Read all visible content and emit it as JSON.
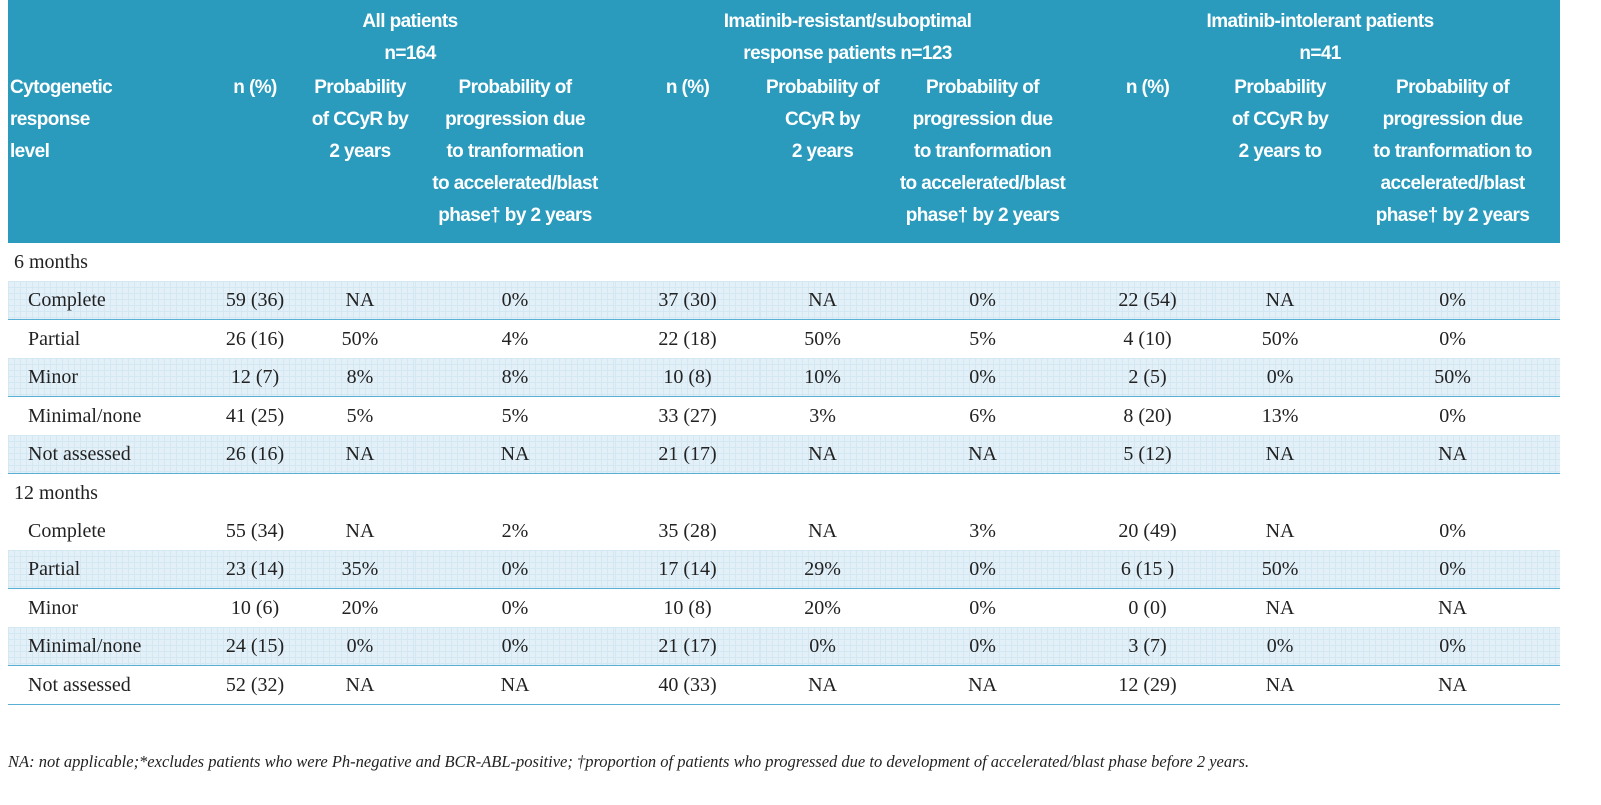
{
  "table": {
    "groups": [
      [
        "All patients",
        "n=164"
      ],
      [
        "Imatinib-resistant/suboptimal",
        "response patients n=123"
      ],
      [
        "Imatinib-intolerant patients",
        "n=41"
      ]
    ],
    "columns": [
      [
        "Cytogenetic",
        "response",
        "level"
      ],
      [
        "n (%)"
      ],
      [
        "Probability",
        "of CCyR by",
        "2 years"
      ],
      [
        "Probability of",
        "progression due",
        "to tranformation",
        "to accelerated/blast",
        "phase† by 2 years"
      ],
      [
        "n (%)"
      ],
      [
        "Probability of",
        "CCyR by",
        "2 years"
      ],
      [
        "Probability of",
        "progression due",
        "to tranformation",
        "to accelerated/blast",
        "phase† by 2 years"
      ],
      [
        "n (%)"
      ],
      [
        "Probability",
        "of CCyR by",
        "2 years to"
      ],
      [
        "Probability of",
        "progression due",
        "to tranformation to",
        "accelerated/blast",
        "phase† by 2 years"
      ]
    ],
    "sections": [
      {
        "title": "6 months",
        "rows": [
          [
            "Complete",
            "59 (36)",
            "NA",
            "0%",
            "37 (30)",
            "NA",
            "0%",
            "22 (54)",
            "NA",
            "0%"
          ],
          [
            "Partial",
            "26 (16)",
            "50%",
            "4%",
            "22 (18)",
            "50%",
            "5%",
            "4 (10)",
            "50%",
            "0%"
          ],
          [
            "Minor",
            "12 (7)",
            "8%",
            "8%",
            "10 (8)",
            "10%",
            "0%",
            "2 (5)",
            "0%",
            "50%"
          ],
          [
            "Minimal/none",
            "41 (25)",
            "5%",
            "5%",
            "33 (27)",
            "3%",
            "6%",
            "8 (20)",
            "13%",
            "0%"
          ],
          [
            "Not assessed",
            "26 (16)",
            "NA",
            "NA",
            "21 (17)",
            "NA",
            "NA",
            "5 (12)",
            "NA",
            "NA"
          ]
        ]
      },
      {
        "title": "12 months",
        "rows": [
          [
            "Complete",
            "55 (34)",
            "NA",
            "2%",
            "35 (28)",
            "NA",
            "3%",
            "20 (49)",
            "NA",
            "0%"
          ],
          [
            "Partial",
            "23 (14)",
            "35%",
            "0%",
            "17 (14)",
            "29%",
            "0%",
            "6 (15 )",
            "50%",
            "0%"
          ],
          [
            "Minor",
            "10 (6)",
            "20%",
            "0%",
            "10 (8)",
            "20%",
            "0%",
            "0 (0)",
            "NA",
            "NA"
          ],
          [
            "Minimal/none",
            "24 (15)",
            "0%",
            "0%",
            "21 (17)",
            "0%",
            "0%",
            "3 (7)",
            "0%",
            "0%"
          ],
          [
            "Not assessed",
            "52 (32)",
            "NA",
            "NA",
            "40 (33)",
            "NA",
            "NA",
            "12 (29)",
            "NA",
            "NA"
          ]
        ]
      }
    ],
    "footnote": "NA: not applicable;*excludes patients who were Ph-negative and BCR-ABL-positive; †proportion of patients who progressed due to development of accelerated/blast phase before 2 years."
  }
}
